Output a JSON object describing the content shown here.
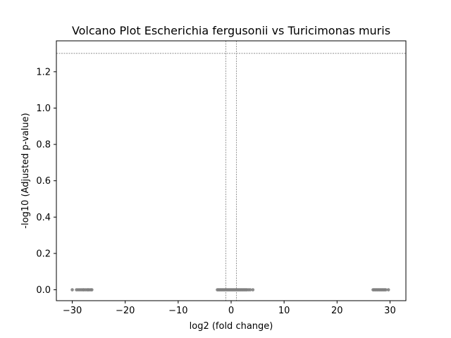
{
  "chart_data": {
    "type": "scatter",
    "title": "Volcano Plot Escherichia fergusonii vs Turicimonas muris",
    "xlabel": "log2 (fold change)",
    "ylabel": "-log10 (Adjusted p-value)",
    "xlim": [
      -33,
      33
    ],
    "ylim": [
      -0.06,
      1.37
    ],
    "x_ticks": [
      -30,
      -20,
      -10,
      0,
      10,
      20,
      30
    ],
    "x_tick_labels": [
      "−30",
      "−20",
      "−10",
      "0",
      "10",
      "20",
      "30"
    ],
    "y_ticks": [
      0.0,
      0.2,
      0.4,
      0.6,
      0.8,
      1.0,
      1.2
    ],
    "y_tick_labels": [
      "0.0",
      "0.2",
      "0.4",
      "0.6",
      "0.8",
      "1.0",
      "1.2"
    ],
    "threshold_lines": {
      "horizontal_y": 1.301,
      "vertical_x": [
        -1,
        1
      ],
      "color": "#808080"
    },
    "point_color": "#808080",
    "grid": false,
    "series": [
      {
        "points": [
          [
            -30.0,
            0
          ],
          [
            -29.2,
            0
          ],
          [
            -28.9,
            0
          ],
          [
            -28.6,
            0
          ],
          [
            -28.3,
            0
          ],
          [
            -28.0,
            0
          ],
          [
            -27.8,
            0
          ],
          [
            -27.5,
            0
          ],
          [
            -27.2,
            0
          ],
          [
            -27.0,
            0
          ],
          [
            -26.8,
            0
          ],
          [
            -26.5,
            0
          ],
          [
            -26.3,
            0
          ],
          [
            -2.6,
            0
          ],
          [
            -2.4,
            0
          ],
          [
            -2.2,
            0
          ],
          [
            -2.0,
            0
          ],
          [
            -1.8,
            0
          ],
          [
            -1.6,
            0
          ],
          [
            -1.4,
            0
          ],
          [
            -1.2,
            0
          ],
          [
            -1.0,
            0
          ],
          [
            -0.8,
            0
          ],
          [
            -0.6,
            0
          ],
          [
            -0.4,
            0
          ],
          [
            -0.2,
            0
          ],
          [
            0.0,
            0
          ],
          [
            0.2,
            0
          ],
          [
            0.4,
            0
          ],
          [
            0.6,
            0
          ],
          [
            0.8,
            0
          ],
          [
            1.0,
            0
          ],
          [
            1.2,
            0
          ],
          [
            1.4,
            0
          ],
          [
            1.6,
            0
          ],
          [
            1.8,
            0
          ],
          [
            2.0,
            0
          ],
          [
            2.2,
            0
          ],
          [
            2.4,
            0
          ],
          [
            2.6,
            0
          ],
          [
            2.8,
            0
          ],
          [
            3.0,
            0
          ],
          [
            3.3,
            0
          ],
          [
            3.6,
            0
          ],
          [
            4.1,
            0
          ],
          [
            26.8,
            0
          ],
          [
            27.0,
            0
          ],
          [
            27.2,
            0
          ],
          [
            27.4,
            0
          ],
          [
            27.6,
            0
          ],
          [
            27.8,
            0
          ],
          [
            28.0,
            0
          ],
          [
            28.2,
            0
          ],
          [
            28.4,
            0
          ],
          [
            28.6,
            0
          ],
          [
            28.8,
            0
          ],
          [
            29.0,
            0
          ],
          [
            29.2,
            0
          ],
          [
            29.7,
            0
          ]
        ]
      }
    ]
  }
}
